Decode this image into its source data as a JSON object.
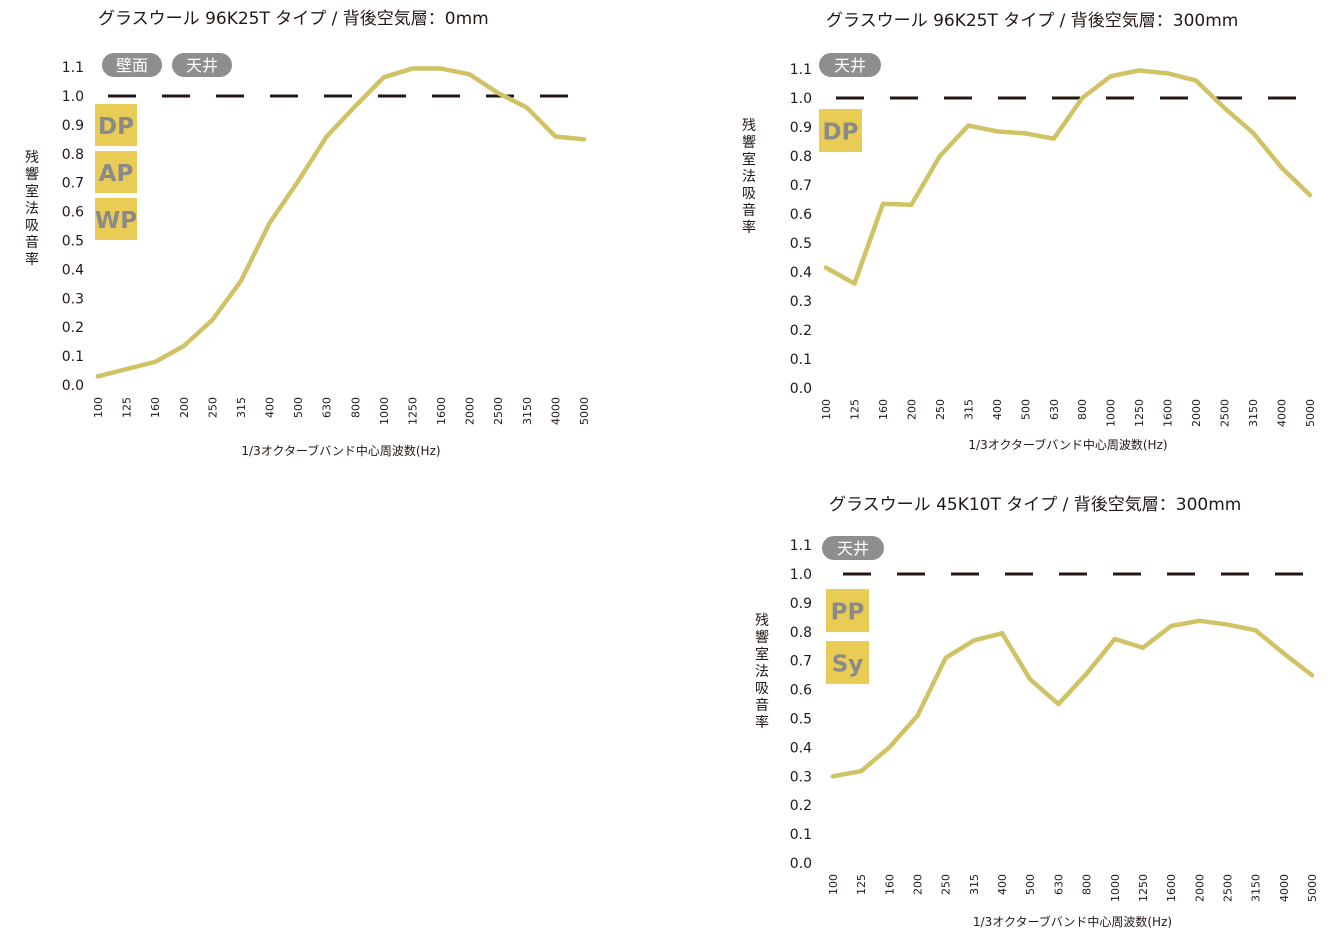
{
  "colors": {
    "series": "#cfc366",
    "reference": "#231815",
    "tag_bg": "#8e8e8e",
    "tag_text": "#ffffff",
    "badge_bg": "#e8cc55",
    "badge_text": "#8a8a8a"
  },
  "chart_data": [
    {
      "type": "line",
      "title": "グラスウール 96K25T タイプ /  背後空気層：0mm",
      "xlabel": "1/3オクターブバンド中心周波数(Hz)",
      "ylabel": "残響室法吸音率",
      "x": [
        "100",
        "125",
        "160",
        "200",
        "250",
        "315",
        "400",
        "500",
        "630",
        "800",
        "1000",
        "1250",
        "1600",
        "2000",
        "2500",
        "3150",
        "4000",
        "5000"
      ],
      "series": [
        {
          "values": [
            0.03,
            0.055,
            0.08,
            0.135,
            0.225,
            0.36,
            0.56,
            0.705,
            0.86,
            0.965,
            1.065,
            1.095,
            1.095,
            1.075,
            1.01,
            0.96,
            0.86,
            0.85
          ]
        }
      ],
      "yticks": [
        "0.0",
        "0.1",
        "0.2",
        "0.3",
        "0.4",
        "0.5",
        "0.6",
        "0.7",
        "0.8",
        "0.9",
        "1.0",
        "1.1"
      ],
      "ylim": [
        0,
        1.1
      ],
      "reference_line": 1.0,
      "grid": false,
      "tags": [
        "壁面",
        "天井"
      ],
      "badges": [
        "DP",
        "AP",
        "WP"
      ]
    },
    {
      "type": "line",
      "title": "グラスウール 96K25T タイプ /  背後空気層：300mm",
      "xlabel": "1/3オクターブバンド中心周波数(Hz)",
      "ylabel": "残響室法吸音率",
      "x": [
        "100",
        "125",
        "160",
        "200",
        "250",
        "315",
        "400",
        "500",
        "630",
        "800",
        "1000",
        "1250",
        "1600",
        "2000",
        "2500",
        "3150",
        "4000",
        "5000"
      ],
      "series": [
        {
          "values": [
            0.415,
            0.36,
            0.635,
            0.632,
            0.8,
            0.905,
            0.885,
            0.878,
            0.86,
            1.0,
            1.075,
            1.095,
            1.085,
            1.06,
            0.965,
            0.88,
            0.76,
            0.665
          ]
        }
      ],
      "yticks": [
        "0.0",
        "0.1",
        "0.2",
        "0.3",
        "0.4",
        "0.5",
        "0.6",
        "0.7",
        "0.8",
        "0.9",
        "1.0",
        "1.1"
      ],
      "ylim": [
        0,
        1.1
      ],
      "reference_line": 1.0,
      "grid": false,
      "tags": [
        "天井"
      ],
      "badges": [
        "DP"
      ]
    },
    {
      "type": "line",
      "title": "グラスウール 45K10T タイプ /  背後空気層：300mm",
      "xlabel": "1/3オクターブバンド中心周波数(Hz)",
      "ylabel": "残響室法吸音率",
      "x": [
        "100",
        "125",
        "160",
        "200",
        "250",
        "315",
        "400",
        "500",
        "630",
        "800",
        "1000",
        "1250",
        "1600",
        "2000",
        "2500",
        "3150",
        "4000",
        "5000"
      ],
      "series": [
        {
          "values": [
            0.3,
            0.318,
            0.4,
            0.51,
            0.71,
            0.77,
            0.795,
            0.635,
            0.55,
            0.655,
            0.775,
            0.745,
            0.82,
            0.838,
            0.825,
            0.805,
            0.725,
            0.65
          ]
        }
      ],
      "yticks": [
        "0.0",
        "0.1",
        "0.2",
        "0.3",
        "0.4",
        "0.5",
        "0.6",
        "0.7",
        "0.8",
        "0.9",
        "1.0",
        "1.1"
      ],
      "ylim": [
        0,
        1.1
      ],
      "reference_line": 1.0,
      "grid": false,
      "tags": [
        "天井"
      ],
      "badges": [
        "PP",
        "Sy"
      ]
    }
  ]
}
